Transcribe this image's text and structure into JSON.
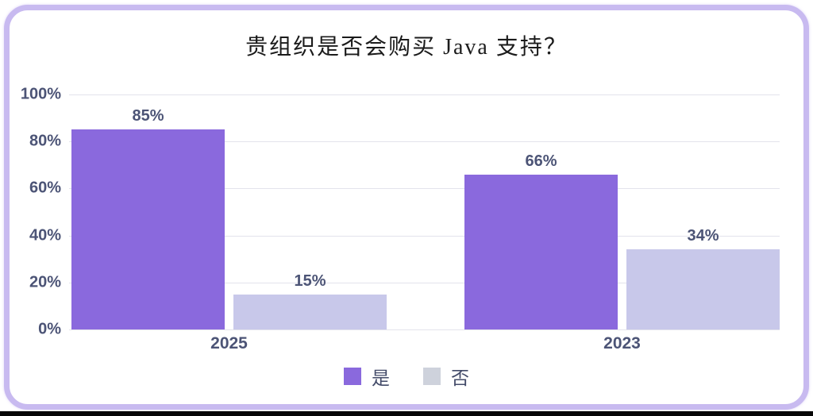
{
  "frame": {
    "border_color": "#c8baf0",
    "background": "#ffffff",
    "bottom_bar_color": "#060606"
  },
  "chart_data": {
    "type": "bar",
    "title": "贵组织是否会购买 Java 支持？",
    "categories": [
      "2025",
      "2023"
    ],
    "series": [
      {
        "name": "是",
        "color": "#8a69dd",
        "legend_color": "#8a69dd",
        "values": [
          85,
          66
        ],
        "labels": [
          "85%",
          "66%"
        ]
      },
      {
        "name": "否",
        "color": "#c8c8ea",
        "legend_color": "#ced2dc",
        "values": [
          15,
          34
        ],
        "labels": [
          "15%",
          "34%"
        ]
      }
    ],
    "y_ticks": [
      "0%",
      "20%",
      "40%",
      "60%",
      "80%",
      "100%"
    ],
    "ylim": [
      0,
      100
    ],
    "grid": true,
    "gridline_color": "#e3e3ec",
    "label_color": "#4c5476",
    "legend_position": "bottom",
    "value_label_format": "percent"
  }
}
